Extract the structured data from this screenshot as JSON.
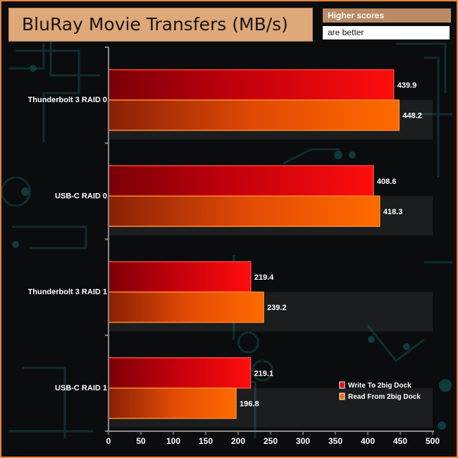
{
  "title": "BluRay Movie Transfers (MB/s)",
  "note": {
    "line1": "Higher scores",
    "line2": "are better"
  },
  "chart_data": {
    "type": "bar",
    "orientation": "horizontal",
    "title": "BluRay Movie Transfers (MB/s)",
    "xlabel": "",
    "ylabel": "",
    "categories": [
      "Thunderbolt 3 RAID 0",
      "USB-C RAID 0",
      "Thunderbolt 3 RAID 1",
      "USB-C RAID 1"
    ],
    "series": [
      {
        "name": "Write To 2big Dock",
        "values": [
          439.9,
          408.6,
          219.4,
          219.1
        ],
        "labels": [
          "439.9",
          "408.6",
          "219.4",
          "219.1"
        ],
        "color": "#e8000e"
      },
      {
        "name": "Read From 2big Dock",
        "values": [
          448.2,
          418.3,
          239.2,
          196.8
        ],
        "labels": [
          "448.2",
          "418.3",
          "239.2",
          "196.8"
        ],
        "color": "#ff6a00"
      }
    ],
    "xlim": [
      0,
      500
    ],
    "xticks": [
      0,
      50,
      100,
      150,
      200,
      250,
      300,
      350,
      400,
      450,
      500
    ],
    "grid": false,
    "legend": "bottom-right"
  }
}
